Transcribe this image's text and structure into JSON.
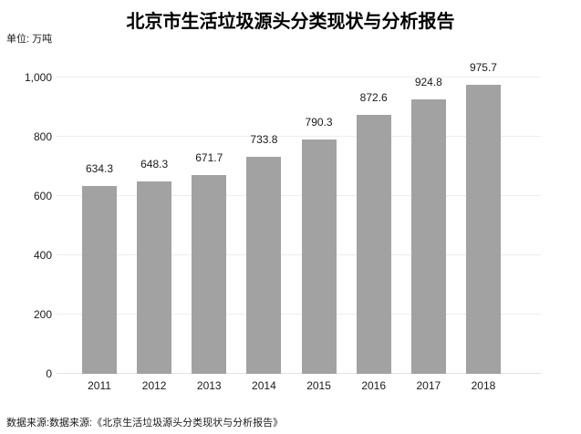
{
  "title": "北京市生活垃圾源头分类现状与分析报告",
  "unit_label": "单位: 万吨",
  "footer": {
    "source_text": "数据来源:数据来源:《北京生活垃圾源头分类现状与分析报告》"
  },
  "colors": {
    "bar": "#a2a2a2",
    "gridline": "#ededed",
    "baseline": "#e2e2e2",
    "title_text": "#000000",
    "label_text": "#1a1a1a"
  },
  "chart_data": {
    "type": "bar",
    "title": "北京市生活垃圾源头分类现状与分析报告",
    "unit": "万吨",
    "categories": [
      "2011",
      "2012",
      "2013",
      "2014",
      "2015",
      "2016",
      "2017",
      "2018"
    ],
    "values": [
      634.3,
      648.3,
      671.7,
      733.8,
      790.3,
      872.6,
      924.8,
      975.7
    ],
    "value_labels": [
      "634.3",
      "648.3",
      "671.7",
      "733.8",
      "790.3",
      "872.6",
      "924.8",
      "975.7"
    ],
    "xlabel": "",
    "ylabel": "单位: 万吨",
    "ylim": [
      0,
      1000
    ],
    "yticks": [
      0,
      200,
      400,
      600,
      800,
      1000
    ],
    "ytick_labels": [
      "0",
      "200",
      "400",
      "600",
      "800",
      "1,000"
    ],
    "grid": true,
    "legend": false,
    "bar_color": "#a2a2a2",
    "value_labels_shown": true,
    "source": "数据来源:数据来源:《北京生活垃圾源头分类现状与分析报告》"
  }
}
